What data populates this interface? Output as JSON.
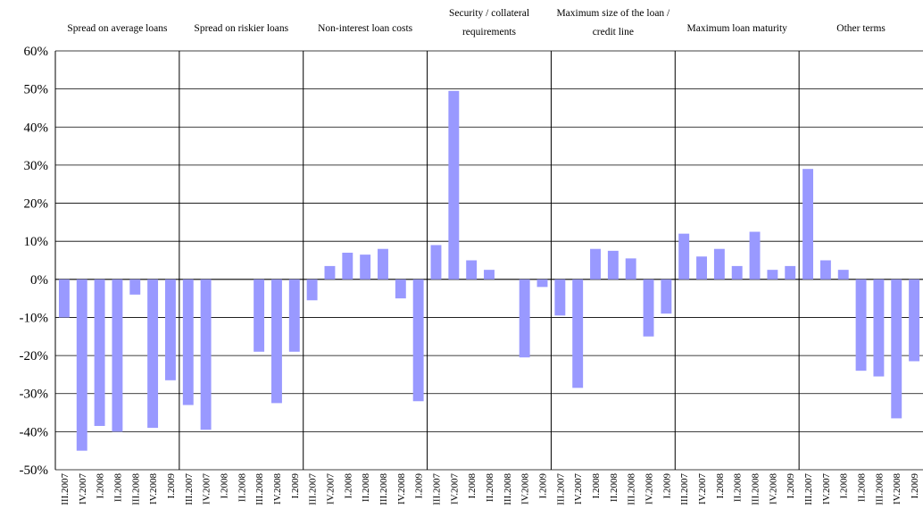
{
  "chart_data": {
    "type": "bar",
    "yaxis": {
      "min": -50,
      "max": 60,
      "step": 10,
      "unit": "%",
      "tick_labels": [
        "60%",
        "50%",
        "40%",
        "30%",
        "20%",
        "10%",
        "0%",
        "-10%",
        "-20%",
        "-30%",
        "-40%",
        "-50%"
      ]
    },
    "grid": true,
    "bar_color": "#9999FF",
    "categories": [
      "III.2007",
      "IV.2007",
      "I.2008",
      "II.2008",
      "III.2008",
      "IV.2008",
      "I.2009"
    ],
    "groups": [
      {
        "title": "Spread on average loans",
        "values": [
          -10,
          -45,
          -38.5,
          -40,
          -4,
          -39,
          -26.5
        ]
      },
      {
        "title": "Spread on riskier loans",
        "values": [
          -33,
          -39.5,
          0,
          0,
          -19,
          -32.5,
          -19
        ]
      },
      {
        "title": "Non-interest loan costs",
        "values": [
          -5.5,
          3.5,
          7,
          6.5,
          8,
          -5,
          -32
        ]
      },
      {
        "title": "Security / collateral requirements",
        "values": [
          9,
          49.5,
          5,
          2.5,
          0,
          -20.5,
          -2
        ]
      },
      {
        "title": "Maximum size of the loan / credit line",
        "values": [
          -9.5,
          -28.5,
          8,
          7.5,
          5.5,
          -15,
          -9
        ]
      },
      {
        "title": "Maximum loan maturity",
        "values": [
          12,
          6,
          8,
          3.5,
          12.5,
          2.5,
          3.5
        ]
      },
      {
        "title": "Other terms",
        "values": [
          29,
          5,
          2.5,
          -24,
          -25.5,
          -36.5,
          -21.5
        ]
      }
    ]
  }
}
